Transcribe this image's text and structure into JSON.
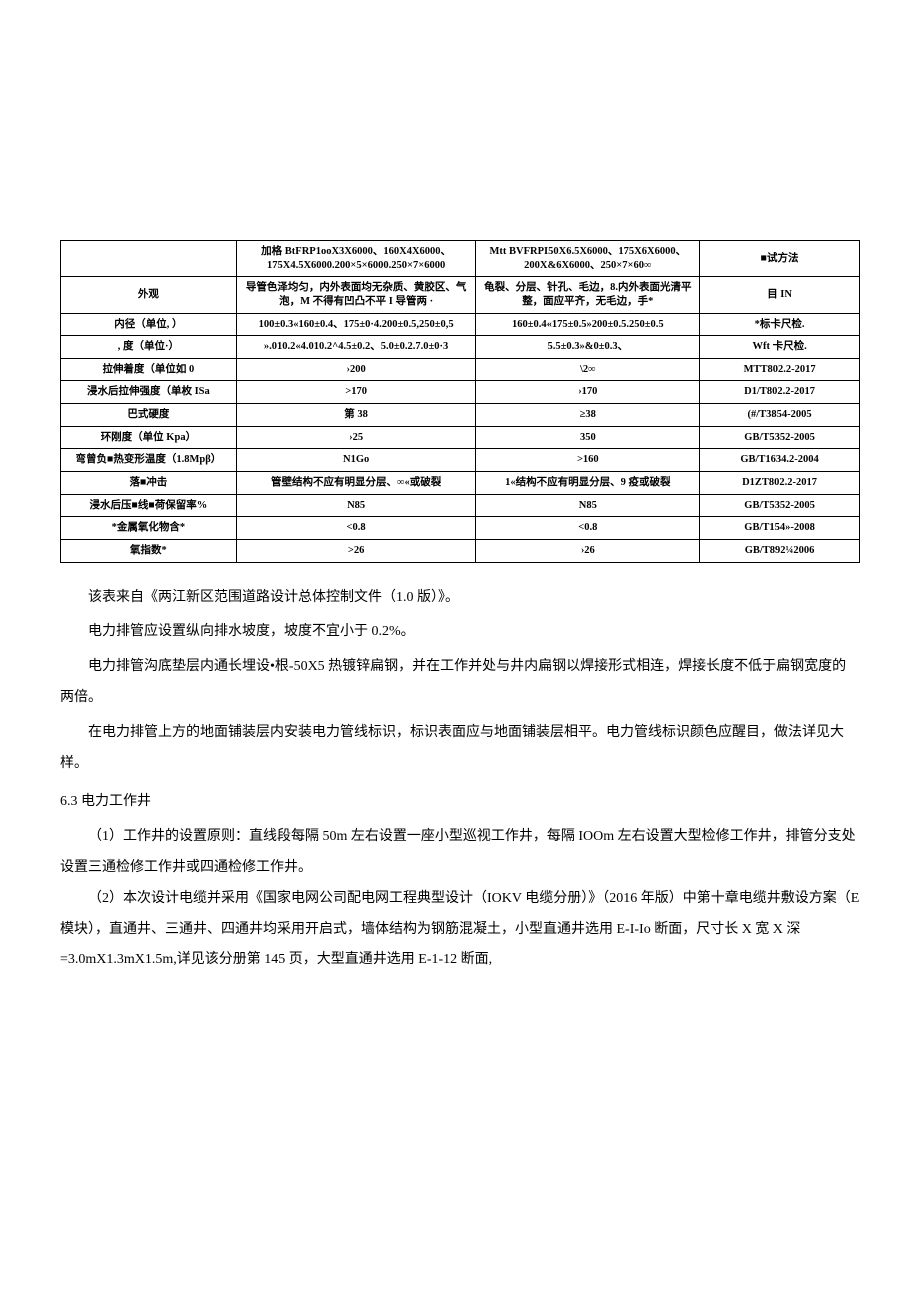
{
  "table": {
    "header": {
      "c1": "",
      "c2": "加格 BtFRP1ooX3X6000、160X4X6000、175X4.5X6000.200×5×6000.250×7×6000",
      "c3": "Mtt  BVFRPI50X6.5X6000、175X6X6000、200X&6X6000、250×7×60∞",
      "c4": "■试方法"
    },
    "rows": [
      {
        "label": "外观",
        "c2": "导管色泽均匀，内外表面均无杂质、黄胶区、气泡，M 不得有凹凸不平 I 导管两 ·",
        "c3": "龟裂、分层、针孔、毛边，8.内外表面光清平整，面应平齐，无毛边，手*",
        "c4": "目 IN"
      },
      {
        "label": "内径（单位, ）",
        "c2": "100±0.3«160±0.4、175±0·4.200±0.5,250±0,5",
        "c3": "160±0.4«175±0.5»200±0.5.250±0.5",
        "c4": "*标卡尺检."
      },
      {
        "label": ", 度（单位·）",
        "c2": "».010.2«4.010.2^4.5±0.2、5.0±0.2.7.0±0·3",
        "c3": "5.5±0.3»&0±0.3、",
        "c4": "Wft 卡尺检."
      },
      {
        "label": "拉伸着度（单位如 0",
        "c2": "›200",
        "c3": "\\2∞",
        "c4": "MTT802.2-2017"
      },
      {
        "label": "浸水后拉伸强度（单枚 ISa",
        "c2": ">170",
        "c3": "›170",
        "c4": "D1/T802.2-2017"
      },
      {
        "label": "巴式硬度",
        "c2": "第 38",
        "c3": "≥38",
        "c4": "(#/T3854-2005"
      },
      {
        "label": "环刚度（单位 Kpa）",
        "c2": "›25",
        "c3": "350",
        "c4": "GB/T5352-2005"
      },
      {
        "label": "弯曾负■热变形温度（1.8Mpβ）",
        "c2": "N1Go",
        "c3": ">160",
        "c4": "GB/T1634.2-2004"
      },
      {
        "label": "落■冲击",
        "c2": "管壁结构不应有明显分层、∞«或破裂",
        "c3": "1«结构不应有明显分层、9 疫或破裂",
        "c4": "D1ZT802.2-2017"
      },
      {
        "label": "浸水后压■线■荷保留率%",
        "c2": "N85",
        "c3": "N85",
        "c4": "GB/T5352-2005"
      },
      {
        "label": "*金属氧化物含*",
        "c2": "<0.8",
        "c3": "<0.8",
        "c4": "GB/T154»-2008"
      },
      {
        "label": "氧指数*",
        "c2": ">26",
        "c3": "›26",
        "c4": "GB/T892¼2006"
      }
    ]
  },
  "body": {
    "p1": "该表来自《两江新区范围道路设计总体控制文件（1.0 版）》。",
    "p2": "电力排管应设置纵向排水坡度，坡度不宜小于 0.2%。",
    "p3": "电力排管沟底垫层内通长埋设•根-50X5 热镀锌扁钢，并在工作并处与井内扁钢以焊接形式相连，焊接长度不低于扁钢宽度的两倍。",
    "p4": "在电力排管上方的地面铺装层内安装电力管线标识，标识表面应与地面铺装层相平。电力管线标识颜色应醒目，做法详见大样。",
    "section": "6.3 电力工作井",
    "p5": "（1）工作井的设置原则：直线段每隔 50m 左右设置一座小型巡视工作井，每隔 IOOm 左右设置大型检修工作井，排管分支处设置三通检修工作井或四通检修工作井。",
    "p6": "（2）本次设计电缆并采用《国家电网公司配电网工程典型设计（IOKV 电缆分册）》（2016 年版）中第十章电缆井敷设方案（E 模块），直通井、三通井、四通井均采用开启式，墙体结构为钢筋混凝土，小型直通井选用 E-I-Io 断面，尺寸长 X 宽 X 深=3.0mX1.3mX1.5m,详见该分册第 145 页，大型直通井选用 E-1-12 断面,"
  }
}
